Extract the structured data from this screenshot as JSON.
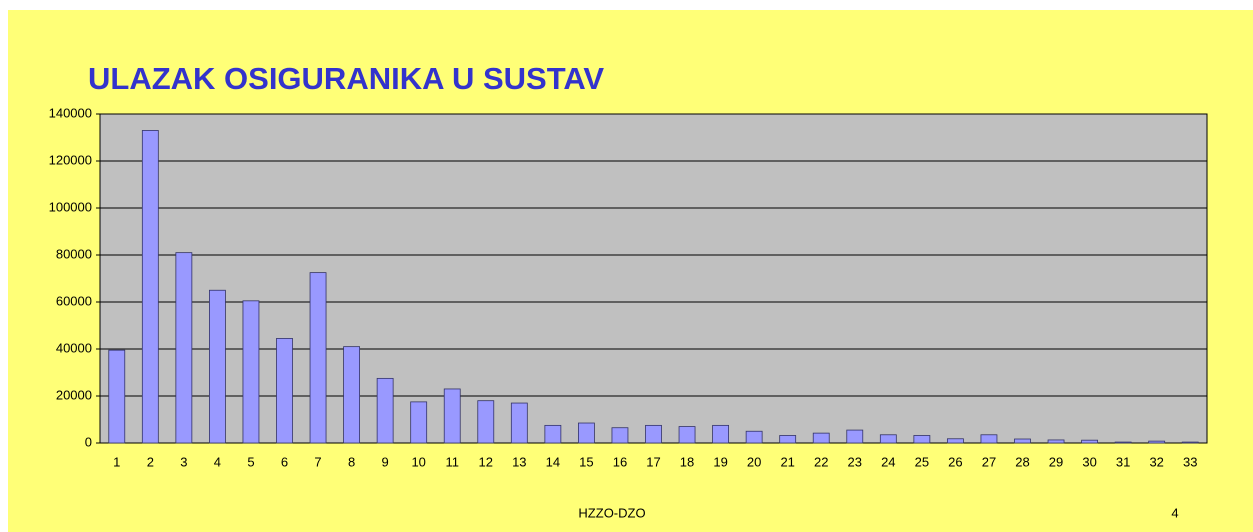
{
  "chart_data": {
    "type": "bar",
    "title": "ULAZAK OSIGURANIKA U SUSTAV",
    "categories": [
      "1",
      "2",
      "3",
      "4",
      "5",
      "6",
      "7",
      "8",
      "9",
      "10",
      "11",
      "12",
      "13",
      "14",
      "15",
      "16",
      "17",
      "18",
      "19",
      "20",
      "21",
      "22",
      "23",
      "24",
      "25",
      "26",
      "27",
      "28",
      "29",
      "30",
      "31",
      "32",
      "33"
    ],
    "values": [
      39500,
      133000,
      81000,
      65000,
      60500,
      44500,
      72500,
      41000,
      27500,
      17500,
      23000,
      18000,
      17000,
      7500,
      8500,
      6500,
      7500,
      7000,
      7500,
      5000,
      3200,
      4200,
      5500,
      3500,
      3200,
      1800,
      3500,
      1700,
      1300,
      1200,
      400,
      800,
      400
    ],
    "color": "#9999ff",
    "ylim": [
      0,
      140000
    ],
    "yticks": [
      0,
      20000,
      40000,
      60000,
      80000,
      100000,
      120000,
      140000
    ],
    "grid": true
  },
  "footer": {
    "center": "HZZO-DZO",
    "page": "4"
  }
}
